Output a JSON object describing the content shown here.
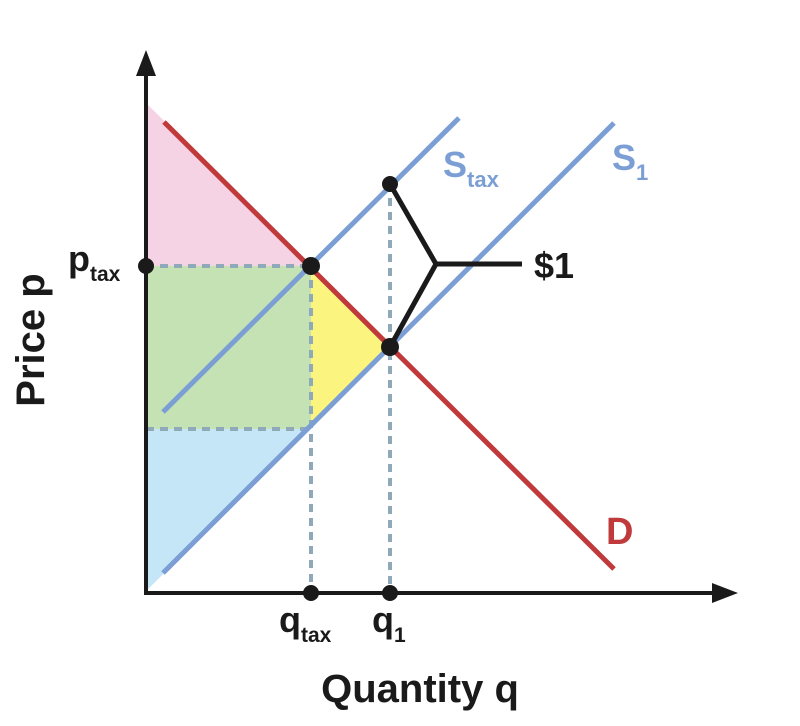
{
  "axes": {
    "y_label": "Price p",
    "x_label": "Quantity q"
  },
  "curves": {
    "supply_tax": {
      "main": "S",
      "sub": "tax"
    },
    "supply_1": {
      "main": "S",
      "sub": "1"
    },
    "demand": "D"
  },
  "ticks": {
    "p_tax": {
      "main": "p",
      "sub": "tax"
    },
    "q_tax": {
      "main": "q",
      "sub": "tax"
    },
    "q_1": {
      "main": "q",
      "sub": "1"
    }
  },
  "tax_bracket_label": "$1",
  "colors": {
    "demand": "#c0393b",
    "supply": "#7b9fd4",
    "guides": "#8fa9b8",
    "axis": "#1a1a1a",
    "consumer_surplus": "#f6d3e4",
    "tax_revenue": "#c5e2b4",
    "deadweight_loss": "#fbf57f",
    "producer_surplus": "#c4e6f6"
  }
}
